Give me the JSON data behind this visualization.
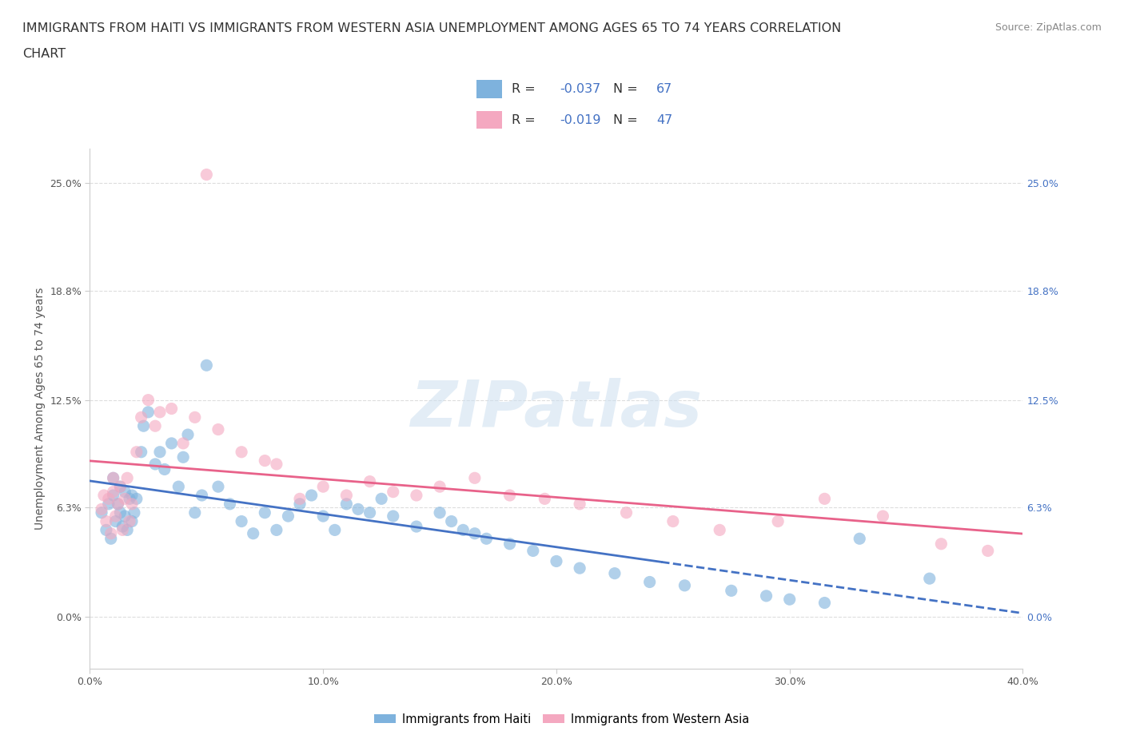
{
  "title_line1": "IMMIGRANTS FROM HAITI VS IMMIGRANTS FROM WESTERN ASIA UNEMPLOYMENT AMONG AGES 65 TO 74 YEARS CORRELATION",
  "title_line2": "CHART",
  "source_text": "Source: ZipAtlas.com",
  "ylabel": "Unemployment Among Ages 65 to 74 years",
  "xlim": [
    0.0,
    0.4
  ],
  "ylim": [
    -0.03,
    0.27
  ],
  "yticks": [
    0.0,
    0.063,
    0.125,
    0.188,
    0.25
  ],
  "ytick_labels": [
    "0.0%",
    "6.3%",
    "12.5%",
    "18.8%",
    "25.0%"
  ],
  "xticks": [
    0.0,
    0.1,
    0.2,
    0.3,
    0.4
  ],
  "xtick_labels": [
    "0.0%",
    "10.0%",
    "20.0%",
    "30.0%",
    "40.0%"
  ],
  "haiti_color": "#7EB2DD",
  "western_asia_color": "#F4A8C0",
  "haiti_line_color": "#4472C4",
  "western_asia_line_color": "#E8628A",
  "haiti_R": -0.037,
  "haiti_N": 67,
  "western_asia_R": -0.019,
  "western_asia_N": 47,
  "legend_label_haiti": "Immigrants from Haiti",
  "legend_label_western_asia": "Immigrants from Western Asia",
  "watermark": "ZIPatlas",
  "haiti_x": [
    0.005,
    0.007,
    0.008,
    0.009,
    0.01,
    0.01,
    0.011,
    0.012,
    0.013,
    0.013,
    0.014,
    0.015,
    0.015,
    0.016,
    0.017,
    0.018,
    0.018,
    0.019,
    0.02,
    0.022,
    0.023,
    0.025,
    0.028,
    0.03,
    0.032,
    0.035,
    0.038,
    0.04,
    0.042,
    0.045,
    0.048,
    0.05,
    0.055,
    0.06,
    0.065,
    0.07,
    0.075,
    0.08,
    0.085,
    0.09,
    0.095,
    0.1,
    0.105,
    0.11,
    0.115,
    0.12,
    0.125,
    0.13,
    0.14,
    0.15,
    0.155,
    0.16,
    0.165,
    0.17,
    0.18,
    0.19,
    0.2,
    0.21,
    0.225,
    0.24,
    0.255,
    0.275,
    0.29,
    0.3,
    0.315,
    0.33,
    0.36
  ],
  "haiti_y": [
    0.06,
    0.05,
    0.065,
    0.045,
    0.07,
    0.08,
    0.055,
    0.065,
    0.06,
    0.075,
    0.052,
    0.058,
    0.072,
    0.05,
    0.068,
    0.055,
    0.07,
    0.06,
    0.068,
    0.095,
    0.11,
    0.118,
    0.088,
    0.095,
    0.085,
    0.1,
    0.075,
    0.092,
    0.105,
    0.06,
    0.07,
    0.145,
    0.075,
    0.065,
    0.055,
    0.048,
    0.06,
    0.05,
    0.058,
    0.065,
    0.07,
    0.058,
    0.05,
    0.065,
    0.062,
    0.06,
    0.068,
    0.058,
    0.052,
    0.06,
    0.055,
    0.05,
    0.048,
    0.045,
    0.042,
    0.038,
    0.032,
    0.028,
    0.025,
    0.02,
    0.018,
    0.015,
    0.012,
    0.01,
    0.008,
    0.045,
    0.022
  ],
  "western_asia_x": [
    0.005,
    0.006,
    0.007,
    0.008,
    0.009,
    0.01,
    0.01,
    0.011,
    0.012,
    0.013,
    0.014,
    0.015,
    0.016,
    0.017,
    0.018,
    0.02,
    0.022,
    0.025,
    0.028,
    0.03,
    0.035,
    0.04,
    0.045,
    0.05,
    0.055,
    0.065,
    0.075,
    0.08,
    0.09,
    0.1,
    0.11,
    0.12,
    0.13,
    0.14,
    0.15,
    0.165,
    0.18,
    0.195,
    0.21,
    0.23,
    0.25,
    0.27,
    0.295,
    0.315,
    0.34,
    0.365,
    0.385
  ],
  "western_asia_y": [
    0.062,
    0.07,
    0.055,
    0.068,
    0.048,
    0.072,
    0.08,
    0.058,
    0.065,
    0.075,
    0.05,
    0.068,
    0.08,
    0.055,
    0.065,
    0.095,
    0.115,
    0.125,
    0.11,
    0.118,
    0.12,
    0.1,
    0.115,
    0.255,
    0.108,
    0.095,
    0.09,
    0.088,
    0.068,
    0.075,
    0.07,
    0.078,
    0.072,
    0.07,
    0.075,
    0.08,
    0.07,
    0.068,
    0.065,
    0.06,
    0.055,
    0.05,
    0.055,
    0.068,
    0.058,
    0.042,
    0.038
  ],
  "grid_color": "#DDDDDD",
  "axis_label_color": "#555555",
  "right_tick_color": "#4472C4",
  "title_fontsize": 11.5,
  "axis_label_fontsize": 10,
  "tick_fontsize": 9,
  "legend_fontsize": 12
}
